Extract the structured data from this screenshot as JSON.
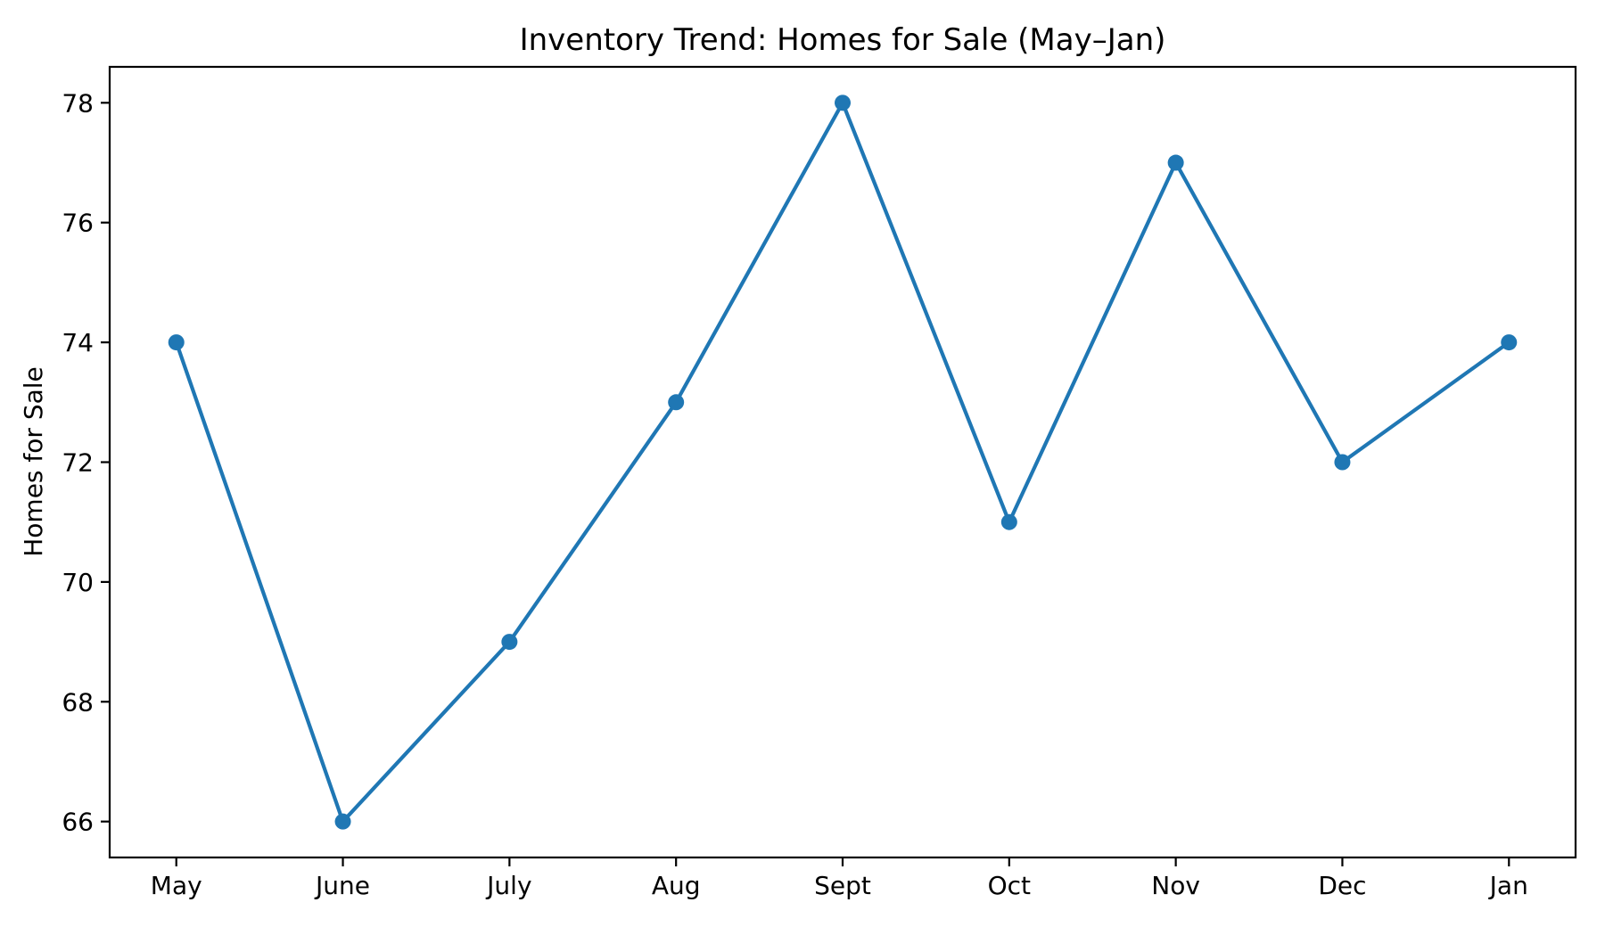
{
  "chart_data": {
    "type": "line",
    "title": "Inventory Trend: Homes for Sale (May–Jan)",
    "xlabel": "",
    "ylabel": "Homes for Sale",
    "categories": [
      "May",
      "June",
      "July",
      "Aug",
      "Sept",
      "Oct",
      "Nov",
      "Dec",
      "Jan"
    ],
    "values": [
      74,
      66,
      69,
      73,
      78,
      71,
      77,
      72,
      74
    ],
    "yticks": [
      66,
      68,
      70,
      72,
      74,
      76,
      78
    ],
    "ylim": [
      65.4,
      78.6
    ],
    "xlim": [
      -0.4,
      8.4
    ],
    "grid": false,
    "legend": "none",
    "marker": "circle",
    "line_color": "#1f77b4",
    "marker_color": "#1f77b4",
    "text_color": "#000000",
    "background_color": "#ffffff"
  }
}
